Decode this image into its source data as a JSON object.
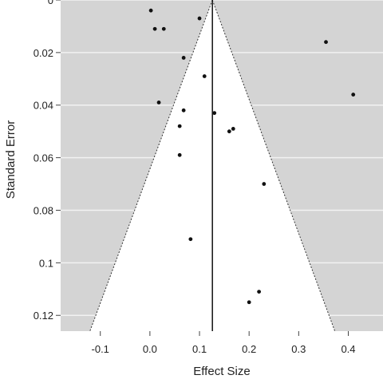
{
  "chart_data": {
    "type": "scatter",
    "title": "",
    "xlabel": "Effect Size",
    "ylabel": "Standard Error",
    "xlim": [
      -0.18,
      0.47
    ],
    "ylim": [
      0,
      0.126
    ],
    "y_reversed": true,
    "x_ticks": [
      "-0.1",
      "0.0",
      "0.1",
      "0.2",
      "0.3",
      "0.4"
    ],
    "x_tick_values": [
      -0.1,
      0.0,
      0.1,
      0.2,
      0.3,
      0.4
    ],
    "y_ticks": [
      "0",
      "0.02",
      "0.04",
      "0.06",
      "0.08",
      "0.1",
      "0.12"
    ],
    "y_tick_values": [
      0,
      0.02,
      0.04,
      0.06,
      0.08,
      0.1,
      0.12
    ],
    "grid": true,
    "pooled_effect": 0.126,
    "funnel_z": 1.96,
    "colors": {
      "background": "#d4d4d4",
      "grid": "#f2f2f2",
      "funnel": "#ffffff",
      "point": "#111111",
      "line": "#111111"
    },
    "points": [
      {
        "x": 0.002,
        "y": 0.004
      },
      {
        "x": 0.01,
        "y": 0.011
      },
      {
        "x": 0.028,
        "y": 0.011
      },
      {
        "x": 0.1,
        "y": 0.007
      },
      {
        "x": 0.068,
        "y": 0.022
      },
      {
        "x": 0.11,
        "y": 0.029
      },
      {
        "x": 0.355,
        "y": 0.016
      },
      {
        "x": 0.41,
        "y": 0.036
      },
      {
        "x": 0.018,
        "y": 0.039
      },
      {
        "x": 0.068,
        "y": 0.042
      },
      {
        "x": 0.13,
        "y": 0.043
      },
      {
        "x": 0.06,
        "y": 0.048
      },
      {
        "x": 0.16,
        "y": 0.05
      },
      {
        "x": 0.168,
        "y": 0.049
      },
      {
        "x": 0.06,
        "y": 0.059
      },
      {
        "x": 0.23,
        "y": 0.07
      },
      {
        "x": 0.082,
        "y": 0.091
      },
      {
        "x": 0.22,
        "y": 0.111
      },
      {
        "x": 0.2,
        "y": 0.115
      }
    ]
  }
}
